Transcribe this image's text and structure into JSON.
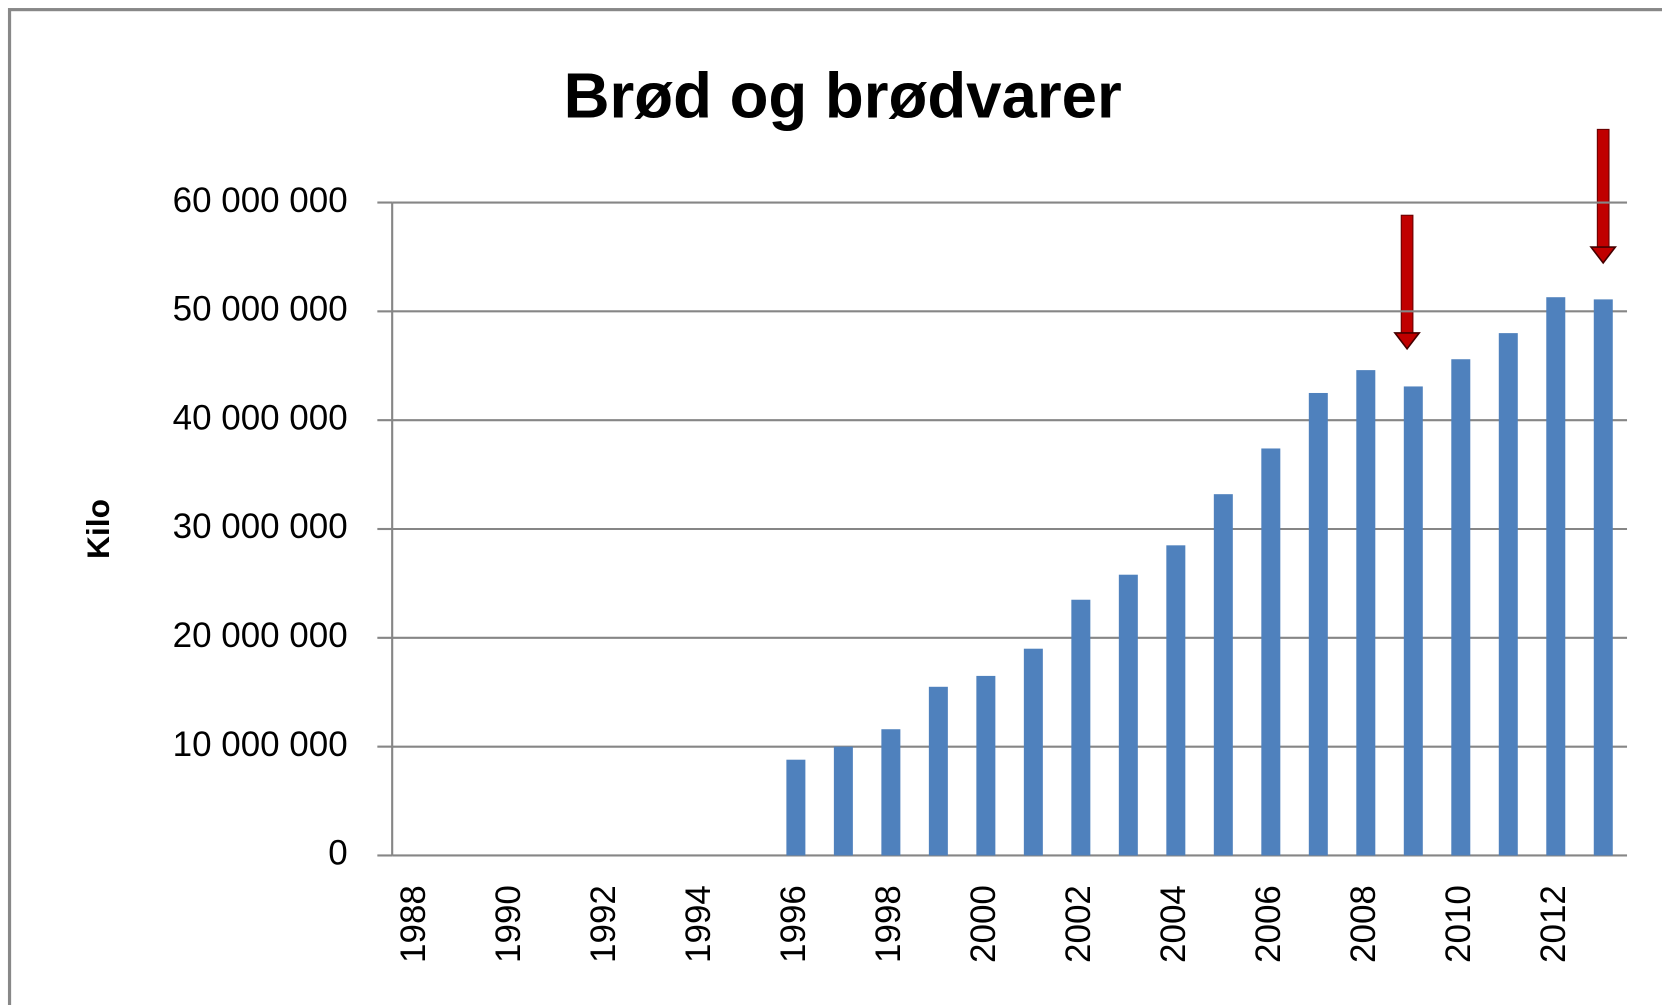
{
  "chart_data": {
    "type": "bar",
    "title": "Brød og brødvarer",
    "y_label": "Kilo",
    "categories": [
      "1988",
      null,
      "1990",
      null,
      "1992",
      null,
      "1994",
      null,
      "1996",
      null,
      "1998",
      null,
      "2000",
      null,
      "2002",
      null,
      "2004",
      null,
      "2006",
      null,
      "2008",
      null,
      "2010",
      null,
      "2012",
      null
    ],
    "values": [
      null,
      null,
      null,
      null,
      null,
      null,
      null,
      null,
      8800000,
      10000000,
      11600000,
      15500000,
      16500000,
      19000000,
      23500000,
      25800000,
      28500000,
      33200000,
      37400000,
      42500000,
      44600000,
      43100000,
      45600000,
      48000000,
      51300000,
      51100000
    ],
    "color": "#4f81bd",
    "ylim": [
      0,
      60000000
    ],
    "yticks": [
      0,
      {
        "value": 10000000,
        "label": "10 000 000"
      },
      {
        "value": 20000000,
        "label": "20 000 000"
      },
      {
        "value": 30000000,
        "label": "30 000 000"
      },
      {
        "value": 40000000,
        "label": "40 000 000"
      },
      {
        "value": 50000000,
        "label": "50 000 000"
      },
      {
        "value": 60000000,
        "label": "60 000 000"
      }
    ],
    "grid": true
  }
}
